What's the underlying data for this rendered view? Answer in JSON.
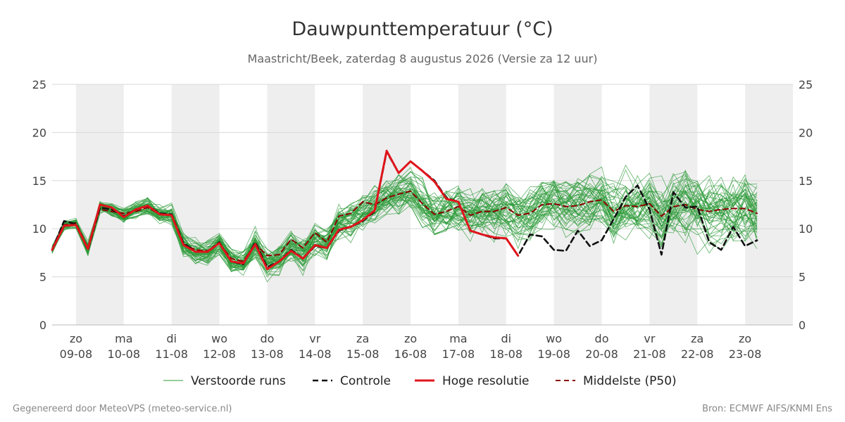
{
  "chart_data": {
    "type": "line",
    "title": "Dauwpunttemperatuur (°C)",
    "subtitle": "Maastricht/Beek, zaterdag  8 augustus 2026 (Versie za 12 uur)",
    "ylim": [
      0,
      25
    ],
    "yticks": [
      0,
      5,
      10,
      15,
      20,
      25
    ],
    "x_start_date": "2026-08-08T12:00",
    "x_range_hours": [
      0,
      372
    ],
    "step_hours": 6,
    "day_ticks": [
      {
        "day": "zo",
        "date": "09-08"
      },
      {
        "day": "ma",
        "date": "10-08"
      },
      {
        "day": "di",
        "date": "11-08"
      },
      {
        "day": "wo",
        "date": "12-08"
      },
      {
        "day": "do",
        "date": "13-08"
      },
      {
        "day": "vr",
        "date": "14-08"
      },
      {
        "day": "za",
        "date": "15-08"
      },
      {
        "day": "zo",
        "date": "16-08"
      },
      {
        "day": "ma",
        "date": "17-08"
      },
      {
        "day": "di",
        "date": "18-08"
      },
      {
        "day": "wo",
        "date": "19-08"
      },
      {
        "day": "do",
        "date": "20-08"
      },
      {
        "day": "vr",
        "date": "21-08"
      },
      {
        "day": "za",
        "date": "22-08"
      },
      {
        "day": "zo",
        "date": "23-08"
      }
    ],
    "grid": true,
    "legend_position": "bottom-center",
    "series": [
      {
        "name": "Verstoorde runs",
        "style": "ensemble",
        "color": "#2e9b3a",
        "members": 50
      },
      {
        "name": "Controle",
        "style": "dashed",
        "color": "#111111",
        "start_hour": 0,
        "values": [
          7.8,
          10.8,
          10.5,
          7.8,
          12.2,
          12.0,
          11.3,
          12.0,
          12.4,
          11.6,
          11.5,
          8.5,
          7.6,
          7.6,
          8.6,
          6.6,
          6.3,
          8.6,
          6.0,
          6.6,
          7.8,
          6.9,
          8.2,
          8.0,
          9.8,
          10.2,
          10.8,
          11.8,
          18.0,
          15.8,
          17.0,
          16.0,
          15.0,
          13.2,
          12.8,
          9.8,
          9.4,
          9.0,
          9.0,
          7.2,
          9.4,
          9.2,
          7.8,
          7.7,
          9.8,
          8.2,
          8.8,
          11.0,
          13.3,
          14.5,
          12.0,
          7.3,
          13.8,
          12.2,
          12.3,
          8.6,
          7.8,
          10.2,
          8.2,
          8.8
        ]
      },
      {
        "name": "Hoge resolutie",
        "style": "solid",
        "color": "#e0141b",
        "start_hour": 0,
        "values": [
          7.8,
          10.3,
          10.4,
          7.9,
          12.5,
          12.2,
          11.2,
          12.0,
          12.4,
          11.5,
          11.4,
          8.3,
          7.6,
          7.6,
          8.5,
          6.6,
          6.4,
          8.4,
          5.8,
          6.6,
          7.7,
          6.9,
          8.3,
          8.0,
          9.9,
          10.2,
          10.9,
          11.9,
          18.1,
          15.8,
          17.0,
          16.0,
          14.9,
          13.1,
          12.8,
          9.8,
          9.4,
          9.1,
          9.0,
          7.2
        ]
      },
      {
        "name": "Middelste (P50)",
        "style": "dashed",
        "color": "#8b0000",
        "start_hour": 0,
        "values": [
          7.9,
          10.4,
          10.6,
          8.0,
          12.0,
          11.8,
          11.6,
          11.8,
          12.2,
          11.5,
          11.4,
          8.4,
          7.8,
          7.7,
          8.5,
          6.9,
          6.6,
          8.4,
          7.2,
          7.3,
          8.9,
          8.0,
          9.6,
          8.6,
          11.3,
          11.6,
          12.8,
          12.5,
          13.2,
          13.6,
          13.9,
          12.6,
          11.5,
          11.8,
          12.3,
          11.4,
          11.8,
          11.8,
          12.2,
          11.4,
          11.6,
          12.5,
          12.6,
          12.3,
          12.4,
          12.8,
          13.0,
          11.8,
          12.4,
          12.3,
          12.6,
          11.3,
          12.3,
          12.5,
          12.0,
          11.8,
          12.0,
          12.1,
          12.1,
          11.6
        ]
      }
    ]
  },
  "footer": {
    "left": "Gegenereerd door MeteoVPS (meteo-service.nl)",
    "right": "Bron: ECMWF AIFS/KNMI Ens"
  }
}
